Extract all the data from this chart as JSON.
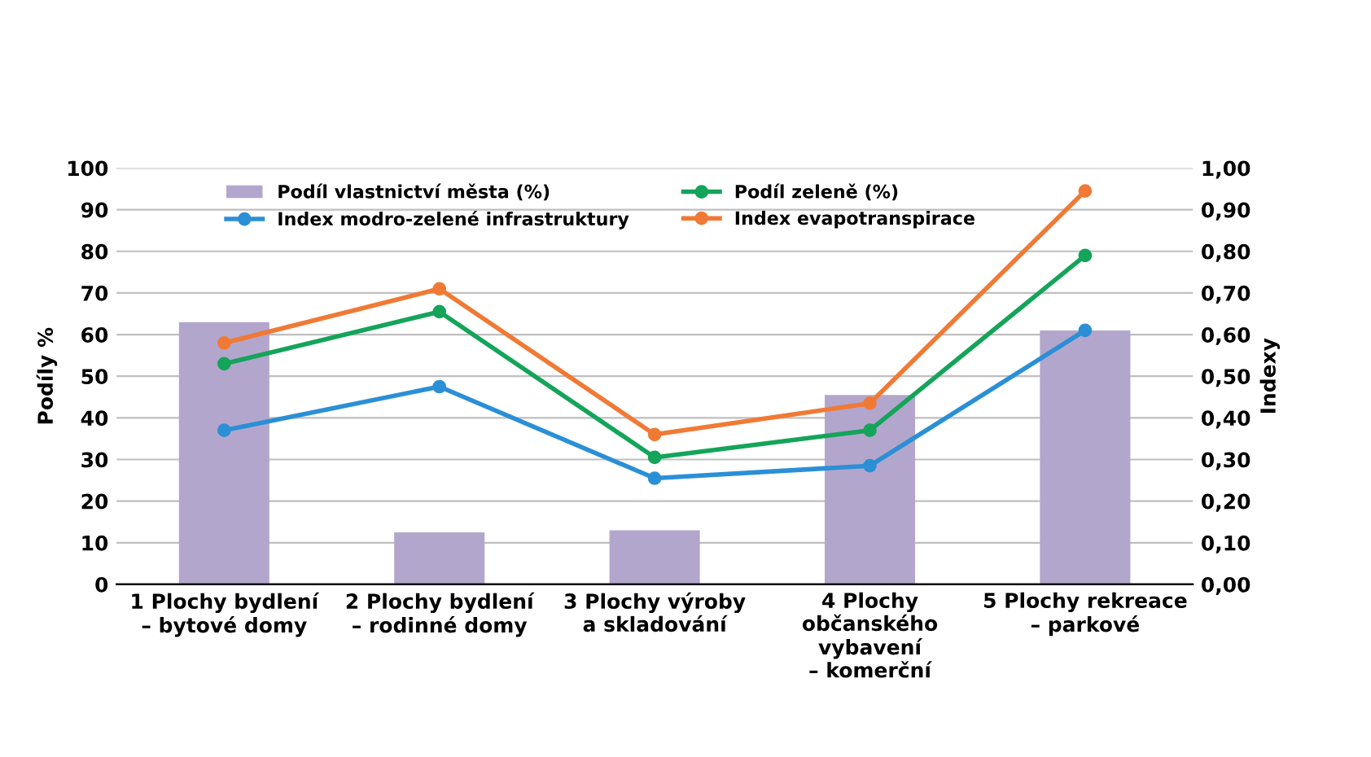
{
  "chart_data": {
    "type": "bar",
    "categories": [
      "1 Plochy bydlení\n– bytové domy",
      "2 Plochy bydlení\n– rodinné domy",
      "3 Plochy výroby\na skladování",
      "4 Plochy\nobčanského\nvybavení\n– komerční",
      "5 Plochy rekreace\n– parkové"
    ],
    "series": [
      {
        "name": "Podíl vlastnictví města (%)",
        "color": "#b3a6cc",
        "values": [
          63,
          12.5,
          13,
          45.5,
          61
        ]
      },
      {
        "name": "Podíl zeleně (%)",
        "type": "line",
        "color": "#14a45a",
        "values": [
          53,
          65.5,
          30.5,
          37,
          79
        ]
      },
      {
        "name": "Index modro-zelené infrastruktury",
        "type": "line",
        "axis": "y2",
        "color": "#2b8fd6",
        "values": [
          0.37,
          0.475,
          0.255,
          0.285,
          0.61
        ]
      },
      {
        "name": "Index evapotranspirace",
        "type": "line",
        "axis": "y2",
        "color": "#f07a35",
        "values": [
          0.58,
          0.71,
          0.36,
          0.435,
          0.945
        ]
      }
    ],
    "ylabel": "Podíly %",
    "y2label": "Indexy",
    "ylim": [
      0,
      100
    ],
    "yticks": [
      0,
      10,
      20,
      30,
      40,
      50,
      60,
      70,
      80,
      90,
      100
    ],
    "y2lim": [
      0,
      1
    ],
    "y2ticks": [
      {
        "value": 0,
        "label": "0,00"
      },
      {
        "value": 0.1,
        "label": "0,10"
      },
      {
        "value": 0.2,
        "label": "0,20"
      },
      {
        "value": 0.3,
        "label": "0,30"
      },
      {
        "value": 0.4,
        "label": "0,40"
      },
      {
        "value": 0.5,
        "label": "0,50"
      },
      {
        "value": 0.6,
        "label": "0,60"
      },
      {
        "value": 0.7,
        "label": "0,70"
      },
      {
        "value": 0.8,
        "label": "0,80"
      },
      {
        "value": 0.9,
        "label": "0,90"
      },
      {
        "value": 1,
        "label": "1,00"
      }
    ],
    "grid": "y",
    "legend": "top",
    "marker": "circle",
    "line_style": "solid"
  }
}
